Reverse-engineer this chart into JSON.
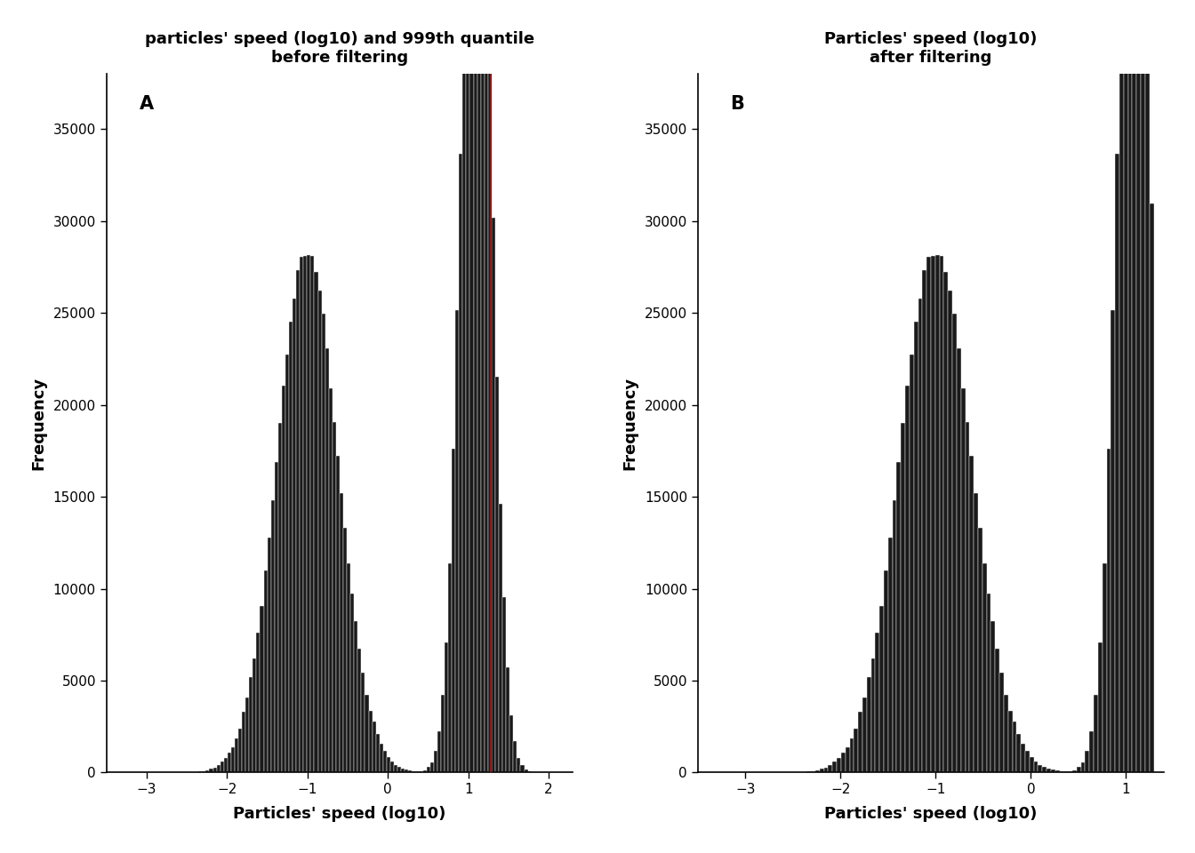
{
  "title_A": "particles' speed (log10) and 999th quantile\nbefore filtering",
  "title_B": "Particles' speed (log10)\nafter filtering",
  "xlabel": "Particles' speed (log10)",
  "ylabel": "Frequency",
  "label_A": "A",
  "label_B": "B",
  "quantile_line_x": 1.28,
  "quantile_line_color": "#8B1A1A",
  "bar_facecolor": "#1a1a1a",
  "bar_edgecolor": "#ffffff",
  "background_color": "#ffffff",
  "xlim_A": [
    -3.5,
    2.3
  ],
  "xlim_B": [
    -3.5,
    1.4
  ],
  "ylim": [
    0,
    38000
  ],
  "xticks_A": [
    -3,
    -2,
    -1,
    0,
    1,
    2
  ],
  "xticks_B": [
    -3,
    -2,
    -1,
    0,
    1
  ],
  "yticks": [
    0,
    5000,
    10000,
    15000,
    20000,
    25000,
    30000,
    35000
  ],
  "n_bins": 120,
  "seed": 12345,
  "peak1_mean": -1.0,
  "peak1_std": 0.38,
  "peak1_n": 600000,
  "peak2_mean": 1.1,
  "peak2_std": 0.18,
  "peak2_n": 600000,
  "title_fontsize": 13,
  "axis_label_fontsize": 13,
  "tick_label_fontsize": 11,
  "panel_label_fontsize": 15
}
